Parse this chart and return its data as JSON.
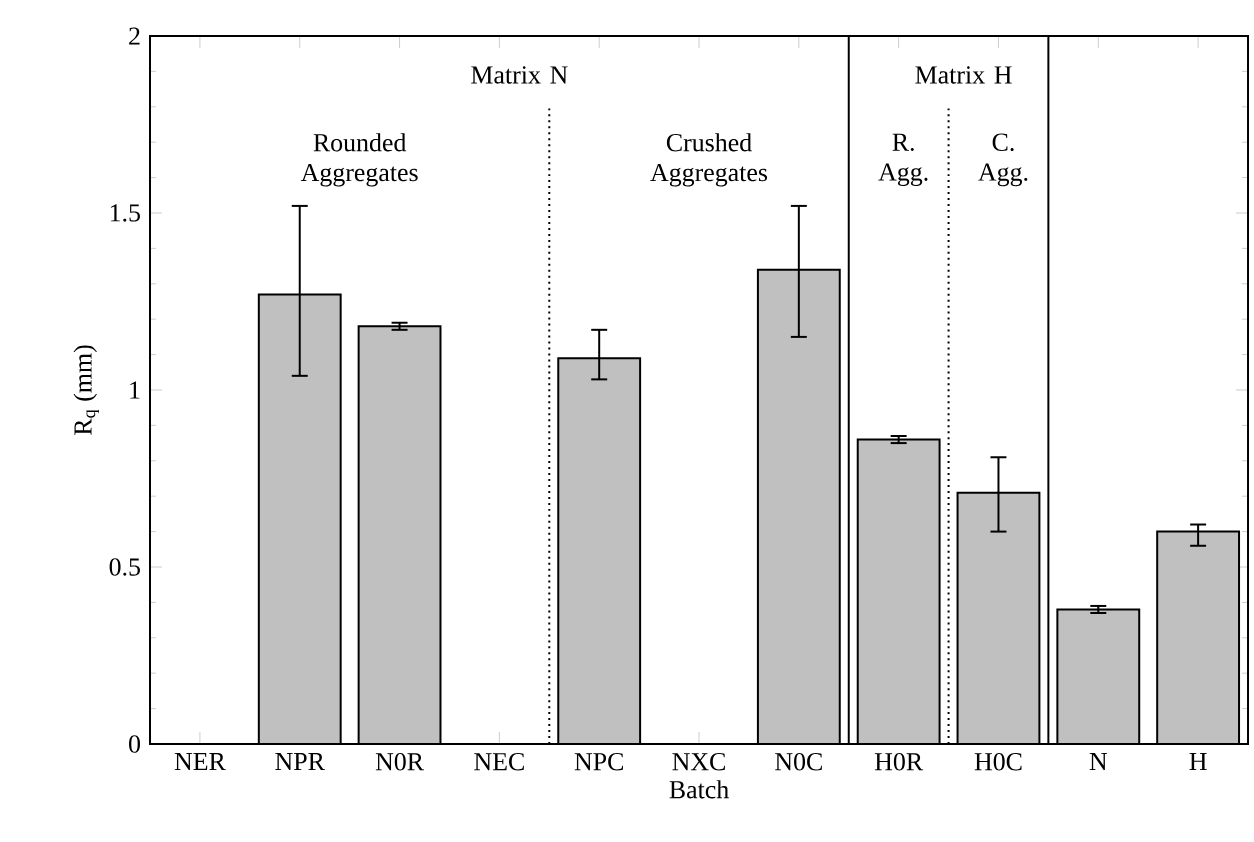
{
  "chart_data": {
    "type": "bar",
    "xlabel": "Batch",
    "ylabel": "R$_{q}$ (mm)",
    "categories": [
      "NER",
      "NPR",
      "N0R",
      "NEC",
      "NPC",
      "NXC",
      "N0C",
      "H0R",
      "H0C",
      "N",
      "H"
    ],
    "values": [
      null,
      1.27,
      1.18,
      null,
      1.09,
      null,
      1.34,
      0.86,
      0.71,
      0.38,
      0.6
    ],
    "errors": [
      null,
      [
        1.04,
        1.52
      ],
      [
        1.17,
        1.19
      ],
      null,
      [
        1.03,
        1.17
      ],
      null,
      [
        1.15,
        1.52
      ],
      [
        0.85,
        0.87
      ],
      [
        0.6,
        0.81
      ],
      [
        0.37,
        0.39
      ],
      [
        0.56,
        0.62
      ]
    ],
    "color": "#c0c0c0",
    "ylim": [
      0,
      2
    ],
    "yticks": [
      0,
      0.5,
      1,
      1.5,
      2
    ],
    "annotations": [
      "Matrix N",
      "Rounded Aggregates",
      "Crushed Aggregates",
      "Matrix H",
      "R. Agg.",
      "C. Agg."
    ]
  }
}
